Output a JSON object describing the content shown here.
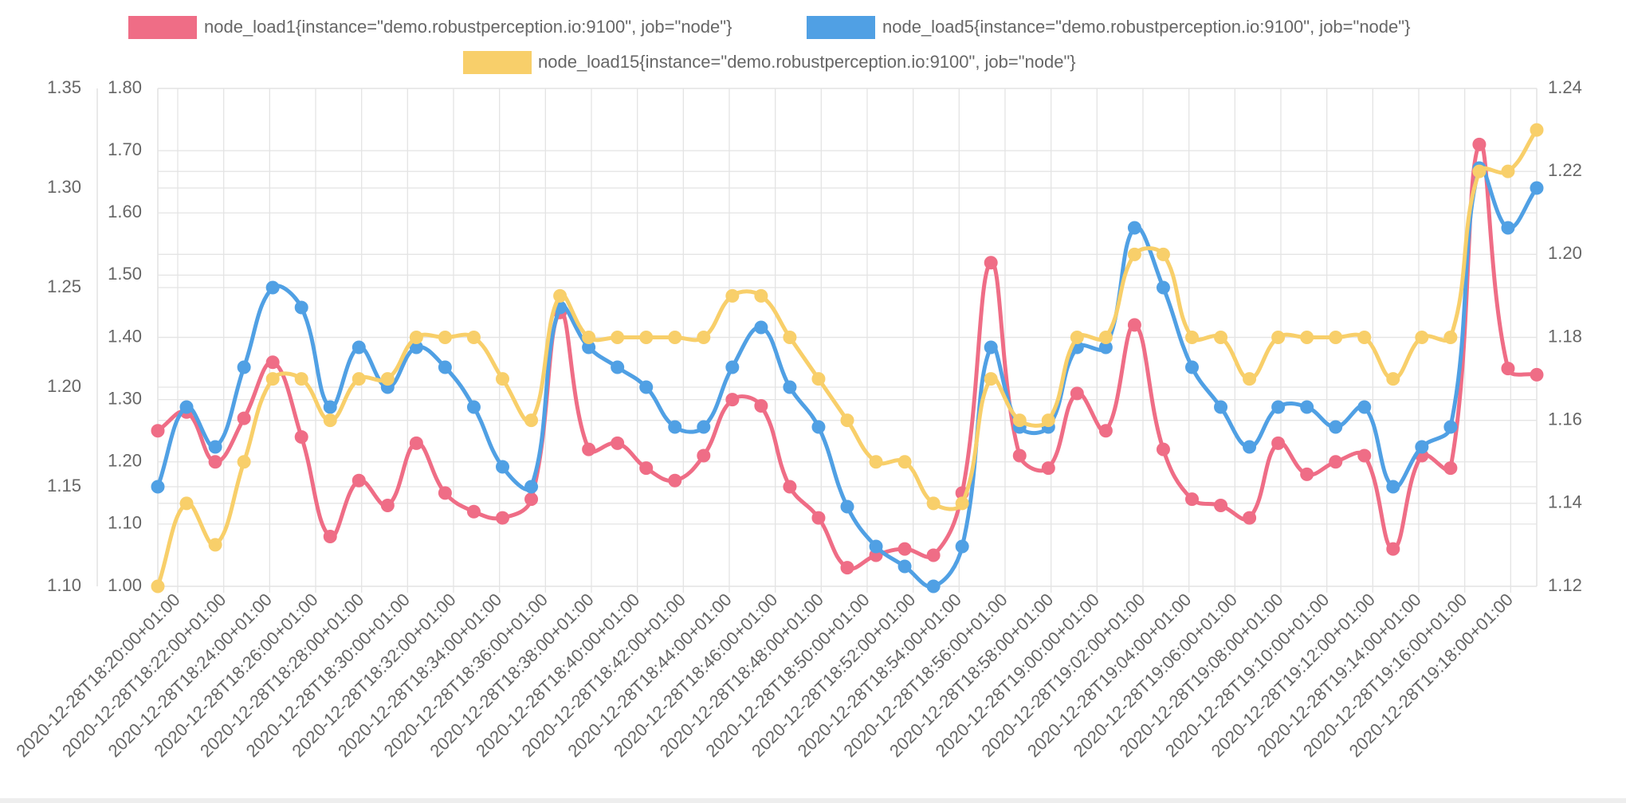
{
  "chart_data": {
    "type": "line",
    "x": [
      "2020-12-28T18:19:08+01:00",
      "2020-12-28T18:20:23+01:00",
      "2020-12-28T18:21:38+01:00",
      "2020-12-28T18:22:53+01:00",
      "2020-12-28T18:24:08+01:00",
      "2020-12-28T18:25:23+01:00",
      "2020-12-28T18:26:38+01:00",
      "2020-12-28T18:27:53+01:00",
      "2020-12-28T18:29:08+01:00",
      "2020-12-28T18:30:23+01:00",
      "2020-12-28T18:31:38+01:00",
      "2020-12-28T18:32:53+01:00",
      "2020-12-28T18:34:08+01:00",
      "2020-12-28T18:35:23+01:00",
      "2020-12-28T18:36:38+01:00",
      "2020-12-28T18:37:53+01:00",
      "2020-12-28T18:39:08+01:00",
      "2020-12-28T18:40:23+01:00",
      "2020-12-28T18:41:38+01:00",
      "2020-12-28T18:42:53+01:00",
      "2020-12-28T18:44:08+01:00",
      "2020-12-28T18:45:23+01:00",
      "2020-12-28T18:46:38+01:00",
      "2020-12-28T18:47:53+01:00",
      "2020-12-28T18:49:08+01:00",
      "2020-12-28T18:50:23+01:00",
      "2020-12-28T18:51:38+01:00",
      "2020-12-28T18:52:53+01:00",
      "2020-12-28T18:54:08+01:00",
      "2020-12-28T18:55:23+01:00",
      "2020-12-28T18:56:38+01:00",
      "2020-12-28T18:57:53+01:00",
      "2020-12-28T18:59:08+01:00",
      "2020-12-28T19:00:23+01:00",
      "2020-12-28T19:01:38+01:00",
      "2020-12-28T19:02:53+01:00",
      "2020-12-28T19:04:08+01:00",
      "2020-12-28T19:05:23+01:00",
      "2020-12-28T19:06:38+01:00",
      "2020-12-28T19:07:53+01:00",
      "2020-12-28T19:09:08+01:00",
      "2020-12-28T19:10:23+01:00",
      "2020-12-28T19:11:38+01:00",
      "2020-12-28T19:12:53+01:00",
      "2020-12-28T19:14:08+01:00",
      "2020-12-28T19:15:23+01:00",
      "2020-12-28T19:16:38+01:00",
      "2020-12-28T19:17:53+01:00",
      "2020-12-28T19:19:08+01:00"
    ],
    "xlim": [
      "2020-12-28T18:19:08+01:00",
      "2020-12-28T19:19:08+01:00"
    ],
    "xticks": [
      "2020-12-28T18:20:00+01:00",
      "2020-12-28T18:22:00+01:00",
      "2020-12-28T18:24:00+01:00",
      "2020-12-28T18:26:00+01:00",
      "2020-12-28T18:28:00+01:00",
      "2020-12-28T18:30:00+01:00",
      "2020-12-28T18:32:00+01:00",
      "2020-12-28T18:34:00+01:00",
      "2020-12-28T18:36:00+01:00",
      "2020-12-28T18:38:00+01:00",
      "2020-12-28T18:40:00+01:00",
      "2020-12-28T18:42:00+01:00",
      "2020-12-28T18:44:00+01:00",
      "2020-12-28T18:46:00+01:00",
      "2020-12-28T18:48:00+01:00",
      "2020-12-28T18:50:00+01:00",
      "2020-12-28T18:52:00+01:00",
      "2020-12-28T18:54:00+01:00",
      "2020-12-28T18:56:00+01:00",
      "2020-12-28T18:58:00+01:00",
      "2020-12-28T19:00:00+01:00",
      "2020-12-28T19:02:00+01:00",
      "2020-12-28T19:04:00+01:00",
      "2020-12-28T19:06:00+01:00",
      "2020-12-28T19:08:00+01:00",
      "2020-12-28T19:10:00+01:00",
      "2020-12-28T19:12:00+01:00",
      "2020-12-28T19:14:00+01:00",
      "2020-12-28T19:16:00+01:00",
      "2020-12-28T19:18:00+01:00"
    ],
    "ylim": [
      1.0,
      1.8
    ],
    "yticks": [
      {
        "value": 1.0,
        "label": "1.00"
      },
      {
        "value": 1.1,
        "label": "1.10"
      },
      {
        "value": 1.2,
        "label": "1.20"
      },
      {
        "value": 1.3,
        "label": "1.30"
      },
      {
        "value": 1.4,
        "label": "1.40"
      },
      {
        "value": 1.5,
        "label": "1.50"
      },
      {
        "value": 1.6,
        "label": "1.60"
      },
      {
        "value": 1.7,
        "label": "1.70"
      },
      {
        "value": 1.8,
        "label": "1.80"
      }
    ],
    "y2lim": [
      1.1,
      1.35
    ],
    "y2ticks": [
      {
        "value": 1.1,
        "label": "1.10"
      },
      {
        "value": 1.15,
        "label": "1.15"
      },
      {
        "value": 1.2,
        "label": "1.20"
      },
      {
        "value": 1.25,
        "label": "1.25"
      },
      {
        "value": 1.3,
        "label": "1.30"
      },
      {
        "value": 1.35,
        "label": "1.35"
      }
    ],
    "y3lim": [
      1.12,
      1.24
    ],
    "y3ticks": [
      {
        "value": 1.12,
        "label": "1.12"
      },
      {
        "value": 1.14,
        "label": "1.14"
      },
      {
        "value": 1.16,
        "label": "1.16"
      },
      {
        "value": 1.18,
        "label": "1.18"
      },
      {
        "value": 1.2,
        "label": "1.20"
      },
      {
        "value": 1.22,
        "label": "1.22"
      },
      {
        "value": 1.24,
        "label": "1.24"
      }
    ],
    "grid": true,
    "series": [
      {
        "name": "node_load1{instance=\"demo.robustperception.io:9100\", job=\"node\"}",
        "color": "#ef6d86",
        "axis": "y",
        "values": [
          1.25,
          1.28,
          1.2,
          1.27,
          1.36,
          1.24,
          1.08,
          1.17,
          1.13,
          1.23,
          1.15,
          1.12,
          1.11,
          1.14,
          1.44,
          1.22,
          1.23,
          1.19,
          1.17,
          1.21,
          1.3,
          1.29,
          1.16,
          1.11,
          1.03,
          1.05,
          1.06,
          1.05,
          1.15,
          1.52,
          1.21,
          1.19,
          1.31,
          1.25,
          1.42,
          1.22,
          1.14,
          1.13,
          1.11,
          1.23,
          1.18,
          1.2,
          1.21,
          1.06,
          1.21,
          1.19,
          1.71,
          1.35,
          1.34
        ]
      },
      {
        "name": "node_load5{instance=\"demo.robustperception.io:9100\", job=\"node\"}",
        "color": "#50a0e4",
        "axis": "y2",
        "values": [
          1.15,
          1.19,
          1.17,
          1.21,
          1.25,
          1.24,
          1.19,
          1.22,
          1.2,
          1.22,
          1.21,
          1.19,
          1.16,
          1.15,
          1.24,
          1.22,
          1.21,
          1.2,
          1.18,
          1.18,
          1.21,
          1.23,
          1.2,
          1.18,
          1.14,
          1.12,
          1.11,
          1.1,
          1.12,
          1.22,
          1.18,
          1.18,
          1.22,
          1.22,
          1.28,
          1.25,
          1.21,
          1.19,
          1.17,
          1.19,
          1.19,
          1.18,
          1.19,
          1.15,
          1.17,
          1.18,
          1.31,
          1.28,
          1.3
        ]
      },
      {
        "name": "node_load15{instance=\"demo.robustperception.io:9100\", job=\"node\"}",
        "color": "#f8cf6a",
        "axis": "y3",
        "values": [
          1.12,
          1.14,
          1.13,
          1.15,
          1.17,
          1.17,
          1.16,
          1.17,
          1.17,
          1.18,
          1.18,
          1.18,
          1.17,
          1.16,
          1.19,
          1.18,
          1.18,
          1.18,
          1.18,
          1.18,
          1.19,
          1.19,
          1.18,
          1.17,
          1.16,
          1.15,
          1.15,
          1.14,
          1.14,
          1.17,
          1.16,
          1.16,
          1.18,
          1.18,
          1.2,
          1.2,
          1.18,
          1.18,
          1.17,
          1.18,
          1.18,
          1.18,
          1.18,
          1.17,
          1.18,
          1.18,
          1.22,
          1.22,
          1.23
        ]
      }
    ]
  }
}
